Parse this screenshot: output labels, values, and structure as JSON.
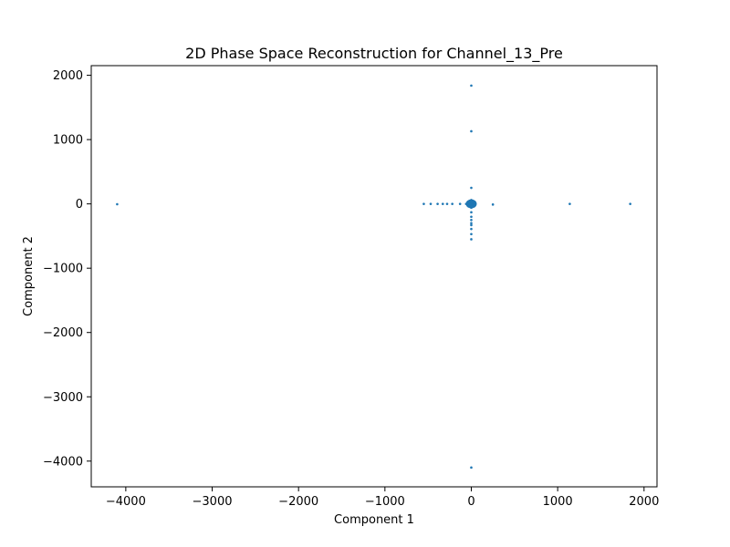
{
  "chart_data": {
    "type": "scatter",
    "title": "2D Phase Space Reconstruction for Channel_13_Pre",
    "xlabel": "Component 1",
    "ylabel": "Component 2",
    "xlim": [
      -4400,
      2150
    ],
    "ylim": [
      -4400,
      2150
    ],
    "xticks": [
      -4000,
      -3000,
      -2000,
      -1000,
      0,
      1000,
      2000
    ],
    "yticks": [
      -4000,
      -3000,
      -2000,
      -1000,
      0,
      1000,
      2000
    ],
    "xtick_labels": [
      "−4000",
      "−3000",
      "−2000",
      "−1000",
      "0",
      "1000",
      "2000"
    ],
    "ytick_labels": [
      "−4000",
      "−3000",
      "−2000",
      "−1000",
      "0",
      "1000",
      "2000"
    ],
    "grid": false,
    "marker_color": "#1f77b4",
    "series": [
      {
        "x": [
          0,
          0,
          0,
          -4100,
          -550,
          -470,
          -390,
          -330,
          -280,
          -220,
          -130,
          -60,
          250,
          1140,
          1840,
          -40,
          -30,
          -20,
          -10,
          0,
          10,
          20,
          30,
          40,
          -25,
          25,
          -15,
          15,
          0,
          0,
          0,
          0,
          0,
          0,
          0,
          0,
          0,
          0,
          0,
          0,
          5,
          -5,
          0,
          0
        ],
        "y": [
          1840,
          1130,
          250,
          -5,
          0,
          0,
          0,
          0,
          0,
          0,
          0,
          0,
          -10,
          0,
          0,
          0,
          10,
          -10,
          20,
          0,
          -20,
          10,
          -10,
          0,
          30,
          -30,
          -40,
          40,
          60,
          -60,
          -130,
          -200,
          -250,
          -300,
          -330,
          -390,
          -470,
          -550,
          -4100,
          15,
          -15,
          5,
          25,
          -25
        ]
      }
    ]
  }
}
